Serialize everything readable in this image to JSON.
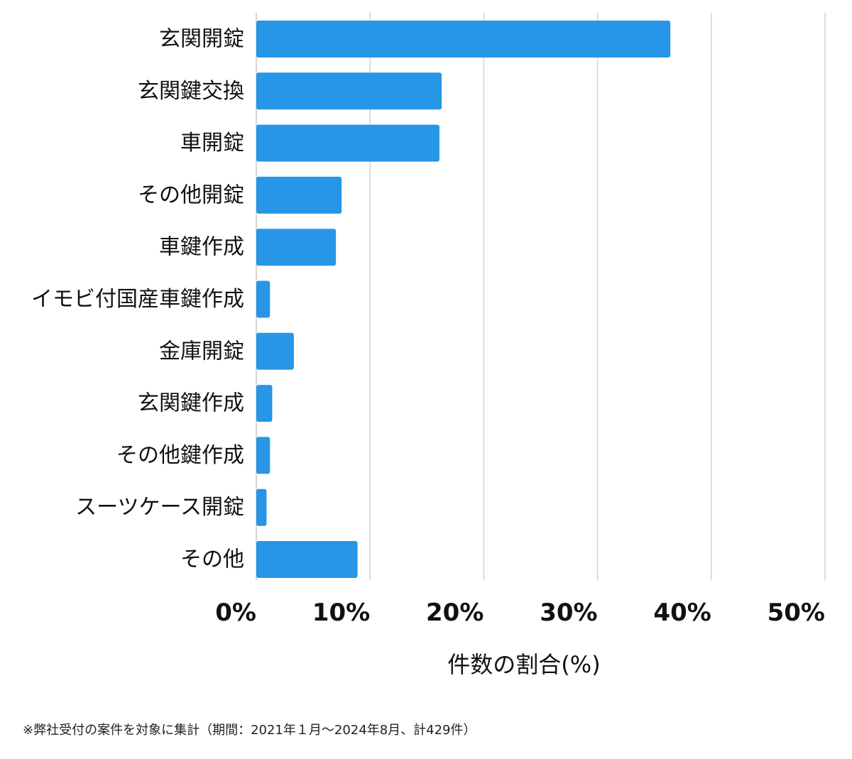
{
  "chart_data": {
    "type": "bar",
    "orientation": "horizontal",
    "categories": [
      "玄関開錠",
      "玄関鍵交換",
      "車開錠",
      "その他開錠",
      "車鍵作成",
      "イモビ付国産車鍵作成",
      "金庫開錠",
      "玄関鍵作成",
      "その他鍵作成",
      "スーツケース開錠",
      "その他"
    ],
    "values": [
      36.4,
      16.3,
      16.1,
      7.5,
      7.0,
      1.2,
      3.3,
      1.4,
      1.2,
      0.9,
      8.9
    ],
    "xlim": [
      0,
      50
    ],
    "xticks": [
      0,
      10,
      20,
      30,
      40,
      50
    ],
    "xtick_labels": [
      "0%",
      "10%",
      "20%",
      "30%",
      "40%",
      "50%"
    ],
    "xlabel": "件数の割合(%)",
    "ylabel": "",
    "title": "",
    "grid": true,
    "bar_color": "#2796e6"
  },
  "footnote": "※弊社受付の案件を対象に集計（期間：2021年１月〜2024年8月、計429件）"
}
